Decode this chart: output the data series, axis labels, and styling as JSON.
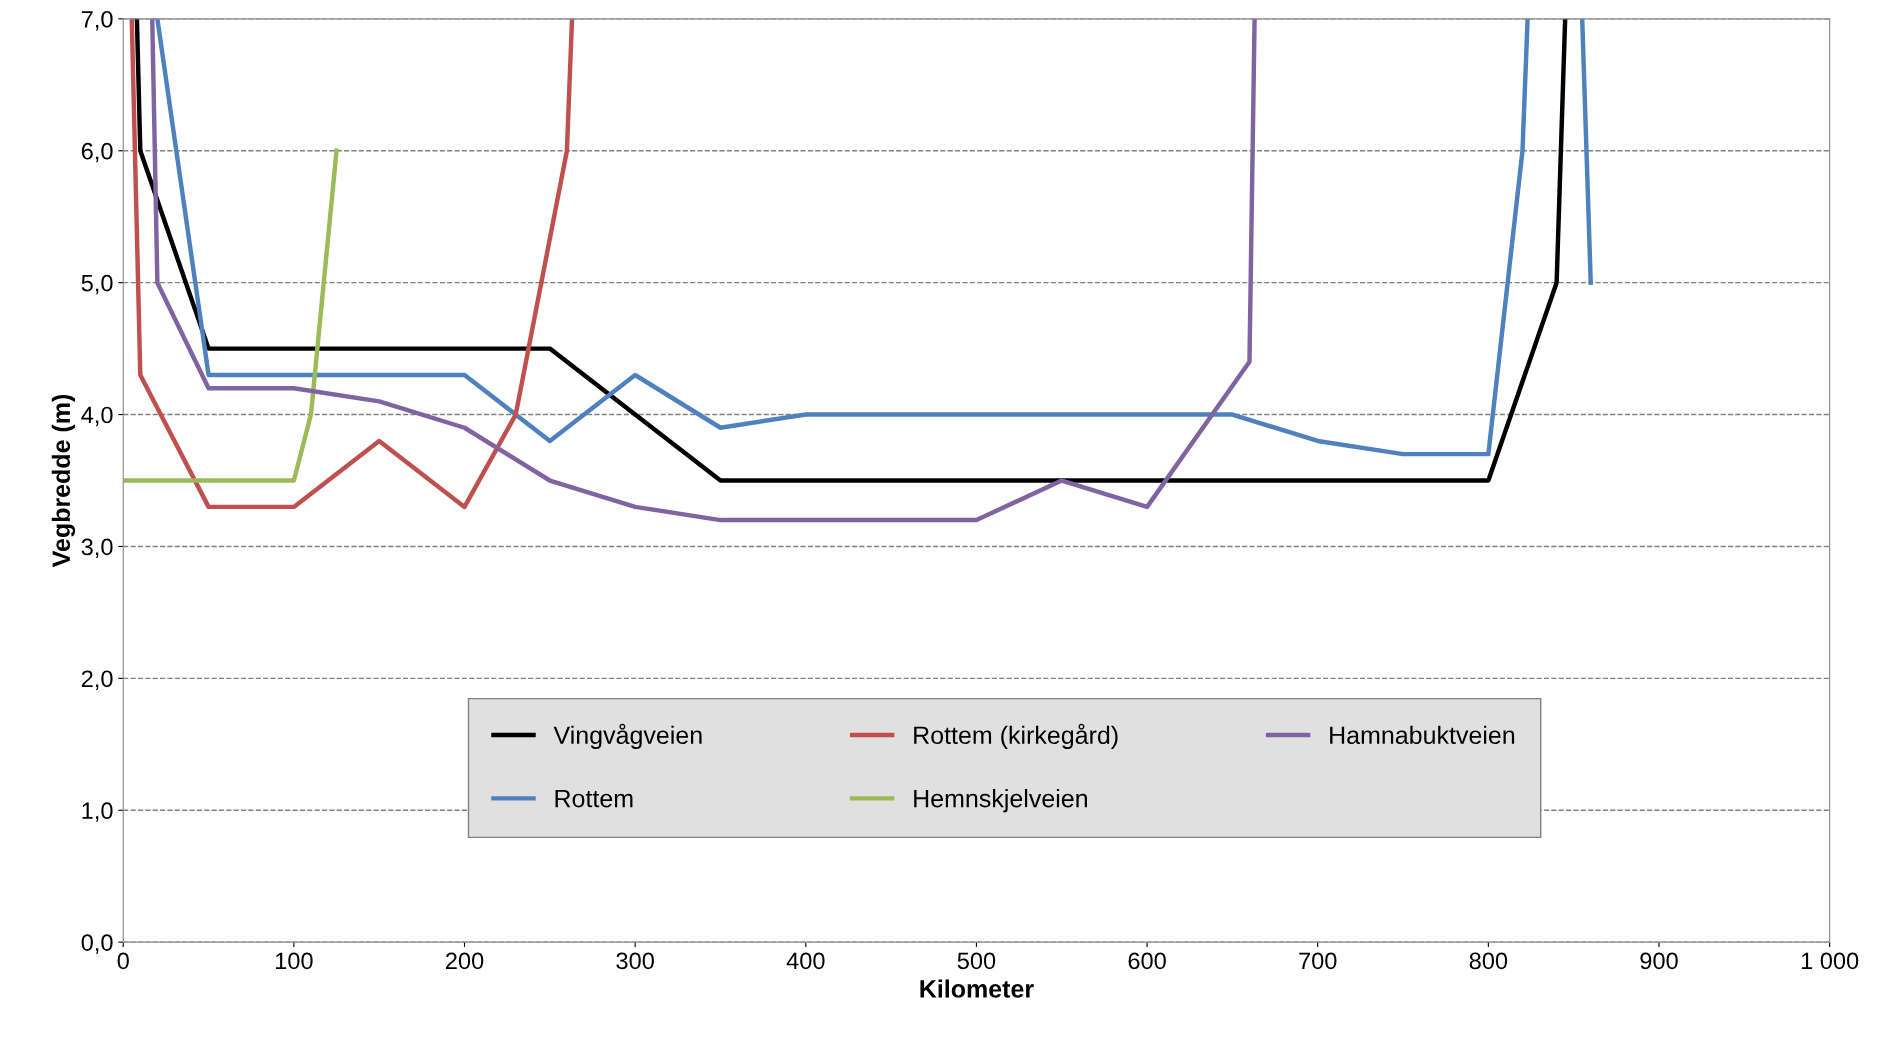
{
  "chart_data": {
    "type": "line",
    "xlabel": "Kilometer",
    "ylabel": "Vegbredde (m)",
    "xlim": [
      0,
      1000
    ],
    "xticks": [
      0,
      100,
      200,
      300,
      400,
      500,
      600,
      700,
      800,
      900,
      {
        "value": 1000,
        "label": "1 000"
      }
    ],
    "ylim": [
      0,
      7
    ],
    "yticks": [
      {
        "value": 0,
        "label": "0,0"
      },
      {
        "value": 1,
        "label": "1,0"
      },
      {
        "value": 2,
        "label": "2,0"
      },
      {
        "value": 3,
        "label": "3,0"
      },
      {
        "value": 4,
        "label": "4,0"
      },
      {
        "value": 5,
        "label": "5,0"
      },
      {
        "value": 6,
        "label": "6,0"
      },
      {
        "value": 7,
        "label": "7,0"
      }
    ],
    "grid": "y",
    "legend": "bottom",
    "marker": "none",
    "line_style": "solid",
    "series": [
      {
        "name": "Vingvågveien",
        "color": "#000000",
        "x": [
          8,
          10,
          50,
          250,
          350,
          800,
          840,
          845
        ],
        "values": [
          7,
          6,
          4.5,
          4.5,
          3.5,
          3.5,
          5,
          7
        ]
      },
      {
        "name": "Rottem",
        "color": "#4f81bd",
        "x": [
          20,
          50,
          200,
          250,
          300,
          350,
          400,
          650,
          700,
          750,
          800,
          820,
          823,
          840,
          855,
          860
        ],
        "values": [
          7,
          4.3,
          4.3,
          3.8,
          4.3,
          3.9,
          4.0,
          4.0,
          3.8,
          3.7,
          3.7,
          6.0,
          7,
          null,
          7,
          5.0
        ]
      },
      {
        "name": "Rottem (kirkegård)",
        "color": "#c0504d",
        "x": [
          5,
          10,
          50,
          100,
          150,
          200,
          230,
          260,
          263
        ],
        "values": [
          7,
          4.3,
          3.3,
          3.3,
          3.8,
          3.3,
          4.0,
          6.0,
          7
        ]
      },
      {
        "name": "Hemnskjelveien",
        "color": "#9bbb59",
        "x": [
          0,
          100,
          110,
          125
        ],
        "values": [
          3.5,
          3.5,
          4.0,
          6.0
        ]
      },
      {
        "name": "Hamnabuktveien",
        "color": "#8064a2",
        "x": [
          17,
          20,
          50,
          100,
          150,
          200,
          250,
          300,
          350,
          500,
          550,
          600,
          660,
          663
        ],
        "values": [
          7,
          5.0,
          4.2,
          4.2,
          4.1,
          3.9,
          3.5,
          3.3,
          3.2,
          3.2,
          3.5,
          3.3,
          4.4,
          7
        ]
      }
    ]
  }
}
